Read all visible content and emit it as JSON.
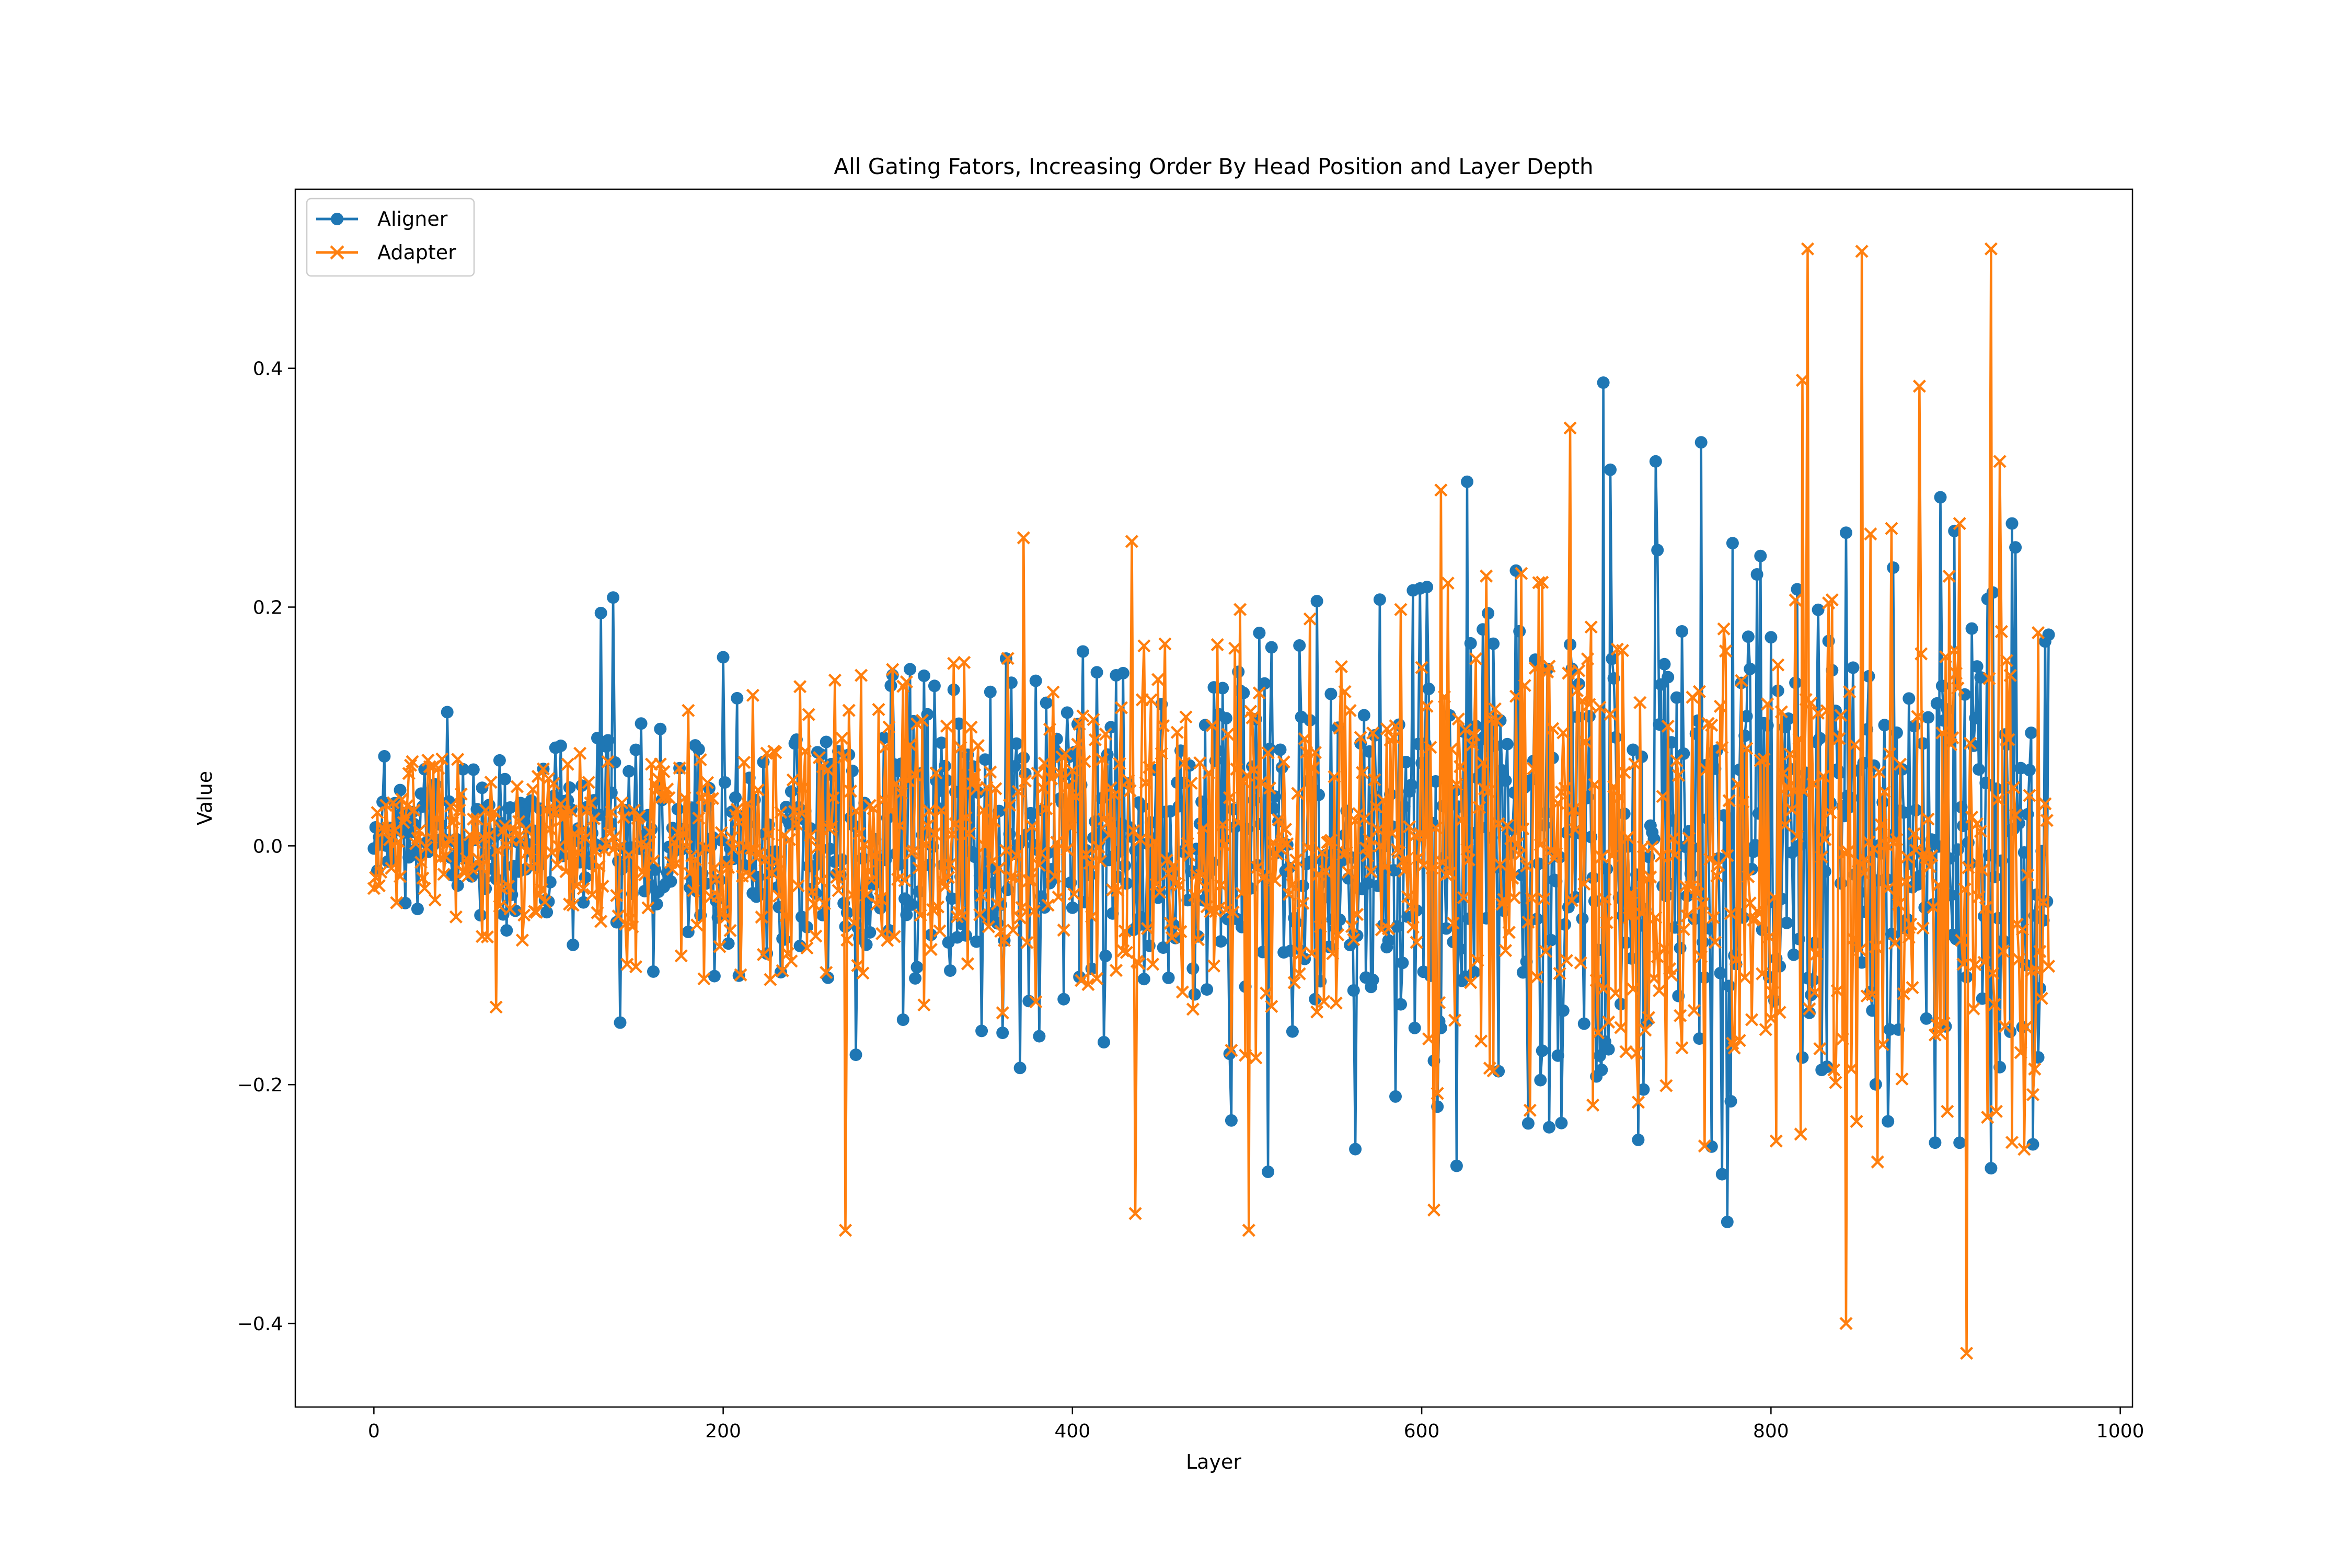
{
  "chart_data": {
    "type": "line",
    "title": "All Gating Fators, Increasing Order By Head Position and Layer Depth",
    "xlabel": "Layer",
    "ylabel": "Value",
    "xlim": [
      -45,
      1007
    ],
    "ylim": [
      -0.47,
      0.55
    ],
    "xticks": [
      0,
      200,
      400,
      600,
      800,
      1000
    ],
    "yticks": [
      -0.4,
      -0.2,
      0.0,
      0.2,
      0.4
    ],
    "ytick_labels": [
      "−0.4",
      "−0.2",
      "0.0",
      "0.2",
      "0.4"
    ],
    "grid": false,
    "legend": {
      "position": "top-left",
      "entries": [
        "Aligner",
        "Adapter"
      ]
    },
    "n_points": 960,
    "envelope": {
      "x": [
        0,
        100,
        200,
        300,
        400,
        500,
        600,
        700,
        800,
        900,
        960
      ],
      "amplitude": [
        0.05,
        0.06,
        0.09,
        0.11,
        0.12,
        0.13,
        0.16,
        0.18,
        0.19,
        0.2,
        0.2
      ]
    },
    "series": [
      {
        "name": "Aligner",
        "color": "#1f77b4",
        "marker": "circle",
        "seed": 12345,
        "peaks": [
          {
            "x": 6,
            "y": 0.075
          },
          {
            "x": 42,
            "y": 0.112
          },
          {
            "x": 130,
            "y": 0.195
          },
          {
            "x": 137,
            "y": 0.208
          },
          {
            "x": 141,
            "y": -0.148
          },
          {
            "x": 200,
            "y": 0.158
          },
          {
            "x": 276,
            "y": -0.175
          },
          {
            "x": 297,
            "y": 0.143
          },
          {
            "x": 370,
            "y": -0.186
          },
          {
            "x": 491,
            "y": -0.23
          },
          {
            "x": 512,
            "y": -0.273
          },
          {
            "x": 540,
            "y": 0.205
          },
          {
            "x": 562,
            "y": -0.254
          },
          {
            "x": 620,
            "y": -0.268
          },
          {
            "x": 626,
            "y": 0.305
          },
          {
            "x": 704,
            "y": 0.388
          },
          {
            "x": 708,
            "y": 0.315
          },
          {
            "x": 734,
            "y": 0.322
          },
          {
            "x": 760,
            "y": 0.338
          },
          {
            "x": 772,
            "y": -0.275
          },
          {
            "x": 775,
            "y": -0.315
          },
          {
            "x": 897,
            "y": 0.292
          },
          {
            "x": 940,
            "y": 0.25
          },
          {
            "x": 950,
            "y": -0.25
          }
        ]
      },
      {
        "name": "Adapter",
        "color": "#ff7f0e",
        "marker": "x",
        "seed": 67890,
        "peaks": [
          {
            "x": 70,
            "y": -0.135
          },
          {
            "x": 270,
            "y": -0.322
          },
          {
            "x": 372,
            "y": 0.258
          },
          {
            "x": 434,
            "y": 0.255
          },
          {
            "x": 436,
            "y": -0.308
          },
          {
            "x": 496,
            "y": 0.198
          },
          {
            "x": 501,
            "y": -0.322
          },
          {
            "x": 607,
            "y": -0.305
          },
          {
            "x": 611,
            "y": 0.298
          },
          {
            "x": 685,
            "y": 0.35
          },
          {
            "x": 818,
            "y": 0.39
          },
          {
            "x": 821,
            "y": 0.5
          },
          {
            "x": 843,
            "y": -0.4
          },
          {
            "x": 852,
            "y": 0.498
          },
          {
            "x": 885,
            "y": 0.385
          },
          {
            "x": 912,
            "y": -0.425
          },
          {
            "x": 926,
            "y": 0.5
          },
          {
            "x": 931,
            "y": 0.322
          }
        ]
      }
    ]
  }
}
